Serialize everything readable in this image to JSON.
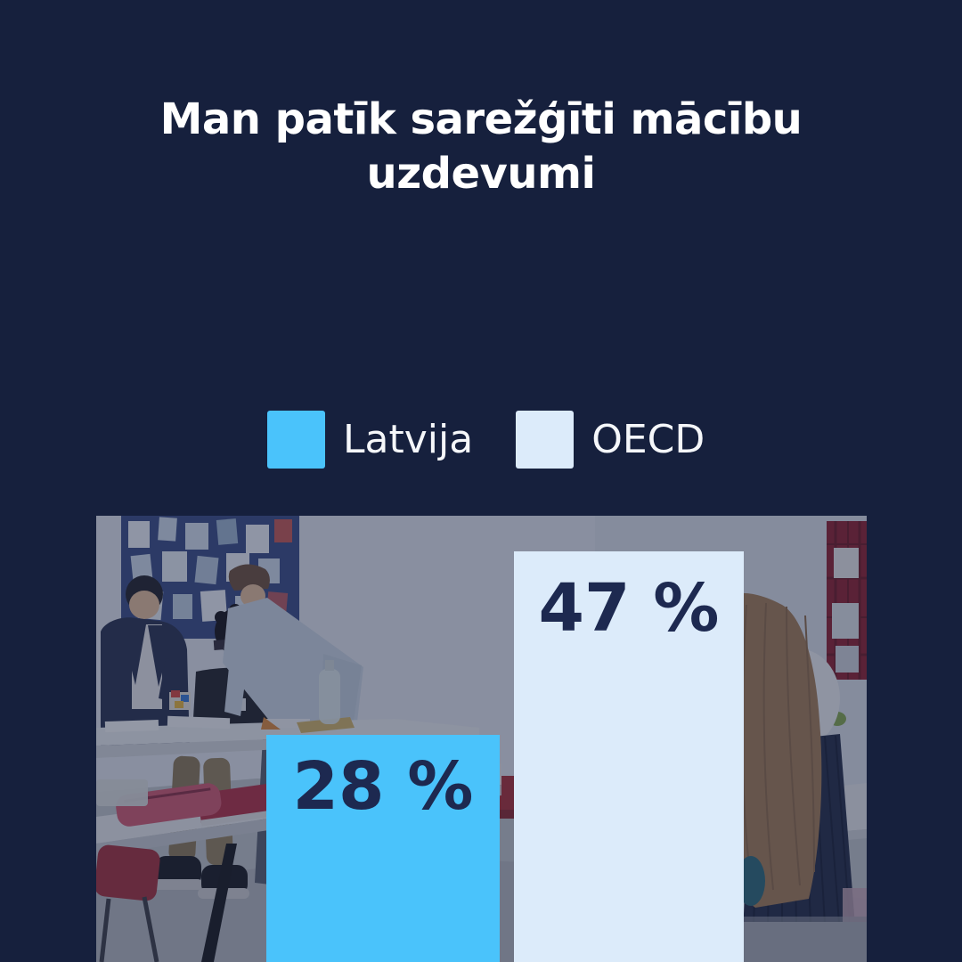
{
  "poster": {
    "title": "Man patīk sarežģīti mācību uzdevumi",
    "title_lines": [
      "Man patīk sarežģīti mācību",
      "uzdevumi"
    ],
    "background_color": "#16203d",
    "title_color": "#ffffff"
  },
  "legend": {
    "items": [
      {
        "label": "Latvija",
        "color": "#4ac3fb"
      },
      {
        "label": "OECD",
        "color": "#dcebfa"
      }
    ]
  },
  "chart_data": {
    "type": "bar",
    "title": "Man patīk sarežģīti mācību uzdevumi",
    "categories": [
      "Latvija",
      "OECD"
    ],
    "values": [
      28,
      47
    ],
    "value_labels": [
      "28 %",
      "47 %"
    ],
    "unit": "%",
    "series_colors": [
      "#4ac3fb",
      "#dcebfa"
    ],
    "value_label_color": "#1d2950",
    "legend_position": "top-center",
    "axes_shown": false,
    "background": "classroom-photo"
  },
  "photo": {
    "description": "classroom-scene-students-working"
  }
}
